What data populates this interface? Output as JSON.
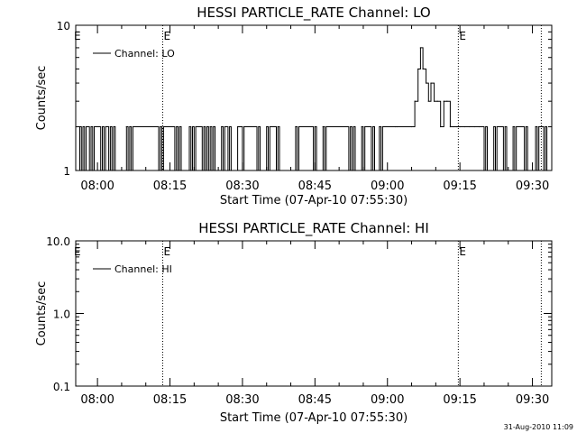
{
  "chart_data": [
    {
      "type": "line",
      "title": "HESSI PARTICLE_RATE Channel: LO",
      "xlabel": "Start Time (07-Apr-10 07:55:30)",
      "ylabel": "Counts/sec",
      "yscale": "log",
      "ylim": [
        1,
        10
      ],
      "ytick_labels": [
        "1",
        "10"
      ],
      "xlim": [
        "07:55:30",
        "09:34:00"
      ],
      "xtick_labels": [
        "08:00",
        "08:15",
        "08:30",
        "08:45",
        "09:00",
        "09:15",
        "09:30"
      ],
      "legend": {
        "placement": "top-left",
        "entries": [
          "Channel: LO"
        ]
      },
      "event_markers": [
        {
          "time": "08:13:30",
          "label": "E"
        },
        {
          "time": "09:14:40",
          "label": "E"
        },
        {
          "time": "09:31:50",
          "label": ""
        }
      ],
      "series": [
        {
          "name": "Channel: LO",
          "x": [
            "07:55:30",
            "07:56:20",
            "07:56:40",
            "07:57:00",
            "07:57:20",
            "07:57:40",
            "07:58:20",
            "07:58:40",
            "07:59:00",
            "07:59:20",
            "08:00:40",
            "08:01:00",
            "08:01:20",
            "08:01:40",
            "08:02:20",
            "08:02:40",
            "08:03:00",
            "08:03:20",
            "08:03:40",
            "08:06:00",
            "08:06:20",
            "08:06:40",
            "08:07:00",
            "08:07:20",
            "08:12:40",
            "08:13:00",
            "08:13:20",
            "08:13:40",
            "08:16:00",
            "08:16:20",
            "08:16:40",
            "08:17:00",
            "08:17:20",
            "08:19:00",
            "08:19:20",
            "08:19:40",
            "08:20:00",
            "08:20:20",
            "08:21:40",
            "08:22:00",
            "08:22:20",
            "08:22:40",
            "08:23:00",
            "08:23:20",
            "08:23:40",
            "08:24:00",
            "08:24:20",
            "08:25:40",
            "08:26:00",
            "08:26:20",
            "08:27:00",
            "08:27:20",
            "08:27:40",
            "08:29:00",
            "08:29:20",
            "08:29:40",
            "08:30:00",
            "08:30:20",
            "08:33:00",
            "08:33:20",
            "08:33:40",
            "08:35:00",
            "08:35:20",
            "08:35:40",
            "08:37:00",
            "08:37:20",
            "08:37:40",
            "08:41:00",
            "08:41:20",
            "08:41:40",
            "08:44:40",
            "08:45:00",
            "08:45:20",
            "08:46:40",
            "08:47:00",
            "08:47:20",
            "08:52:00",
            "08:52:20",
            "08:52:40",
            "08:53:00",
            "08:53:20",
            "08:54:40",
            "08:55:00",
            "08:55:20",
            "08:56:40",
            "08:57:00",
            "08:57:20",
            "08:58:20",
            "08:58:40",
            "08:59:00",
            "09:01:40",
            "09:02:00",
            "09:05:00",
            "09:05:40",
            "09:06:20",
            "09:06:50",
            "09:07:20",
            "09:08:00",
            "09:08:30",
            "09:09:00",
            "09:09:40",
            "09:10:20",
            "09:11:00",
            "09:11:40",
            "09:12:20",
            "09:13:00",
            "09:13:40",
            "09:14:20",
            "09:15:00",
            "09:16:00",
            "09:17:00",
            "09:18:00",
            "09:19:00",
            "09:20:00",
            "09:20:20",
            "09:20:40",
            "09:22:00",
            "09:22:20",
            "09:22:40",
            "09:24:00",
            "09:24:20",
            "09:24:40",
            "09:26:00",
            "09:26:20",
            "09:26:40",
            "09:28:20",
            "09:28:40",
            "09:29:00",
            "09:30:40",
            "09:31:00",
            "09:31:20",
            "09:32:20",
            "09:32:40",
            "09:33:00",
            "09:34:00"
          ],
          "values": [
            1,
            2,
            1,
            2,
            1,
            2,
            1,
            2,
            1,
            2,
            1,
            2,
            1,
            2,
            1,
            2,
            1,
            2,
            1,
            2,
            1,
            2,
            1,
            2,
            1,
            2,
            1,
            2,
            1,
            2,
            1,
            2,
            1,
            2,
            1,
            2,
            1,
            2,
            1,
            2,
            1,
            2,
            1,
            2,
            1,
            2,
            1,
            2,
            1,
            2,
            1,
            2,
            1,
            2,
            2,
            2,
            1,
            2,
            1,
            2,
            1,
            2,
            1,
            2,
            1,
            2,
            1,
            2,
            1,
            2,
            1,
            2,
            1,
            2,
            1,
            2,
            1,
            2,
            1,
            2,
            1,
            2,
            1,
            2,
            1,
            2,
            1,
            2,
            1,
            2,
            2,
            2,
            2,
            3,
            5,
            7,
            5,
            4,
            3,
            4,
            3,
            3,
            2,
            3,
            3,
            2,
            2,
            2,
            2,
            2,
            2,
            2,
            2,
            1,
            2,
            1,
            2,
            1,
            2,
            1,
            2,
            1,
            2,
            1,
            2,
            1,
            2,
            1,
            2,
            1,
            2,
            1,
            2,
            1,
            2
          ]
        }
      ]
    },
    {
      "type": "line",
      "title": "HESSI PARTICLE_RATE Channel: HI",
      "xlabel": "Start Time (07-Apr-10 07:55:30)",
      "ylabel": "Counts/sec",
      "yscale": "log",
      "ylim": [
        0.1,
        10
      ],
      "ytick_labels": [
        "0.1",
        "1.0",
        "10.0"
      ],
      "xlim": [
        "07:55:30",
        "09:34:00"
      ],
      "xtick_labels": [
        "08:00",
        "08:15",
        "08:30",
        "08:45",
        "09:00",
        "09:15",
        "09:30"
      ],
      "legend": {
        "placement": "top-left",
        "entries": [
          "Channel: HI"
        ]
      },
      "event_markers": [
        {
          "time": "08:13:30",
          "label": "E"
        },
        {
          "time": "09:14:40",
          "label": "E"
        },
        {
          "time": "09:31:50",
          "label": ""
        }
      ],
      "series": [
        {
          "name": "Channel: HI",
          "x": [],
          "values": []
        }
      ]
    }
  ],
  "footer": {
    "timestamp": "31-Aug-2010 11:09"
  },
  "colors": {
    "background": "#ffffff",
    "foreground": "#000000"
  }
}
